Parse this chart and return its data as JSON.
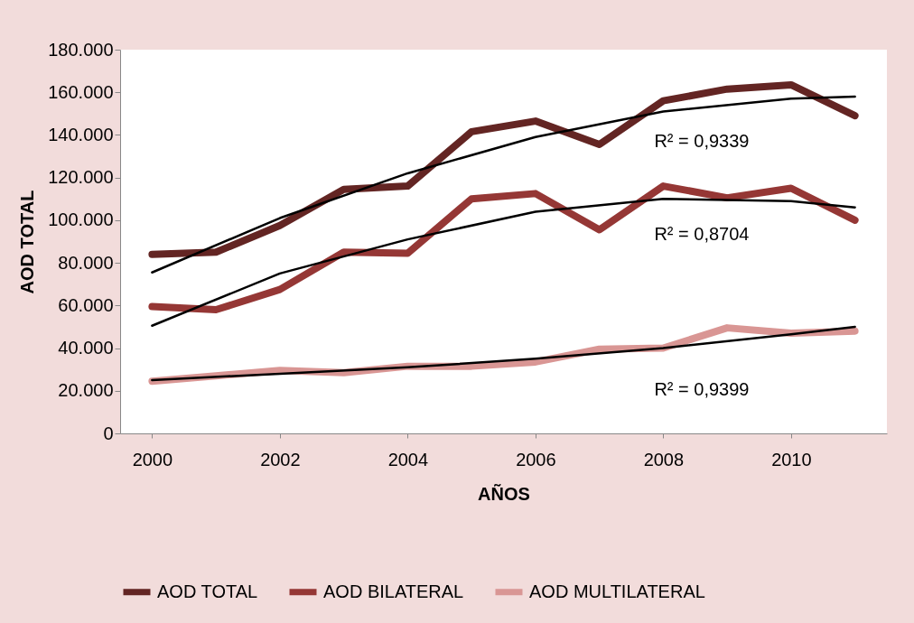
{
  "chart_data": {
    "type": "line",
    "xlabel": "AÑOS",
    "ylabel": "AOD  TOTAL",
    "x": [
      2000,
      2001,
      2002,
      2003,
      2004,
      2005,
      2006,
      2007,
      2008,
      2009,
      2010,
      2011
    ],
    "series": [
      {
        "name": "AOD TOTAL",
        "color": "#632523",
        "values": [
          84000,
          85000,
          97500,
          114500,
          116000,
          141500,
          146500,
          135500,
          156000,
          161500,
          163500,
          149000
        ]
      },
      {
        "name": "AOD BILATERAL",
        "color": "#953735",
        "values": [
          59500,
          58000,
          67500,
          85000,
          84500,
          110000,
          112500,
          95500,
          116000,
          110500,
          115000,
          100000
        ]
      },
      {
        "name": "AOD MULTILATERAL",
        "color": "#d99694",
        "values": [
          24500,
          27000,
          29500,
          28500,
          31500,
          31500,
          33500,
          39500,
          40000,
          49500,
          47000,
          48000
        ]
      },
      {
        "type": "line",
        "color": "#000000",
        "x": [
          2000,
          2002,
          2004,
          2006,
          2008,
          2010,
          2011
        ],
        "values": [
          75500,
          101000,
          122000,
          139000,
          151000,
          157000,
          158000
        ]
      },
      {
        "type": "line",
        "color": "#000000",
        "x": [
          2000,
          2002,
          2004,
          2006,
          2008,
          2010,
          2011
        ],
        "values": [
          50500,
          75000,
          91000,
          104000,
          110000,
          109000,
          106000
        ]
      },
      {
        "type": "line",
        "color": "#000000",
        "x": [
          2000,
          2002,
          2004,
          2006,
          2008,
          2010,
          2011
        ],
        "values": [
          25000,
          28000,
          31000,
          35000,
          40000,
          46500,
          50000
        ]
      }
    ],
    "annotations": [
      "R² = 0,9339",
      "R² = 0,8704",
      "R² = 0,9399"
    ],
    "xlim": [
      1999.5,
      2011.5
    ],
    "xticks": [
      2000,
      2002,
      2004,
      2006,
      2008,
      2010
    ],
    "ylim": [
      0,
      180000
    ],
    "yticks": [
      {
        "value": 0,
        "label": "0"
      },
      {
        "value": 20000,
        "label": "20.000"
      },
      {
        "value": 40000,
        "label": "40.000"
      },
      {
        "value": 60000,
        "label": "60.000"
      },
      {
        "value": 80000,
        "label": "80.000"
      },
      {
        "value": 100000,
        "label": "100.000"
      },
      {
        "value": 120000,
        "label": "120.000"
      },
      {
        "value": 140000,
        "label": "140.000"
      },
      {
        "value": 160000,
        "label": "160.000"
      },
      {
        "value": 180000,
        "label": "180.000"
      }
    ],
    "grid": false,
    "legend": "bottom",
    "marker": "none",
    "line_style": "solid"
  }
}
